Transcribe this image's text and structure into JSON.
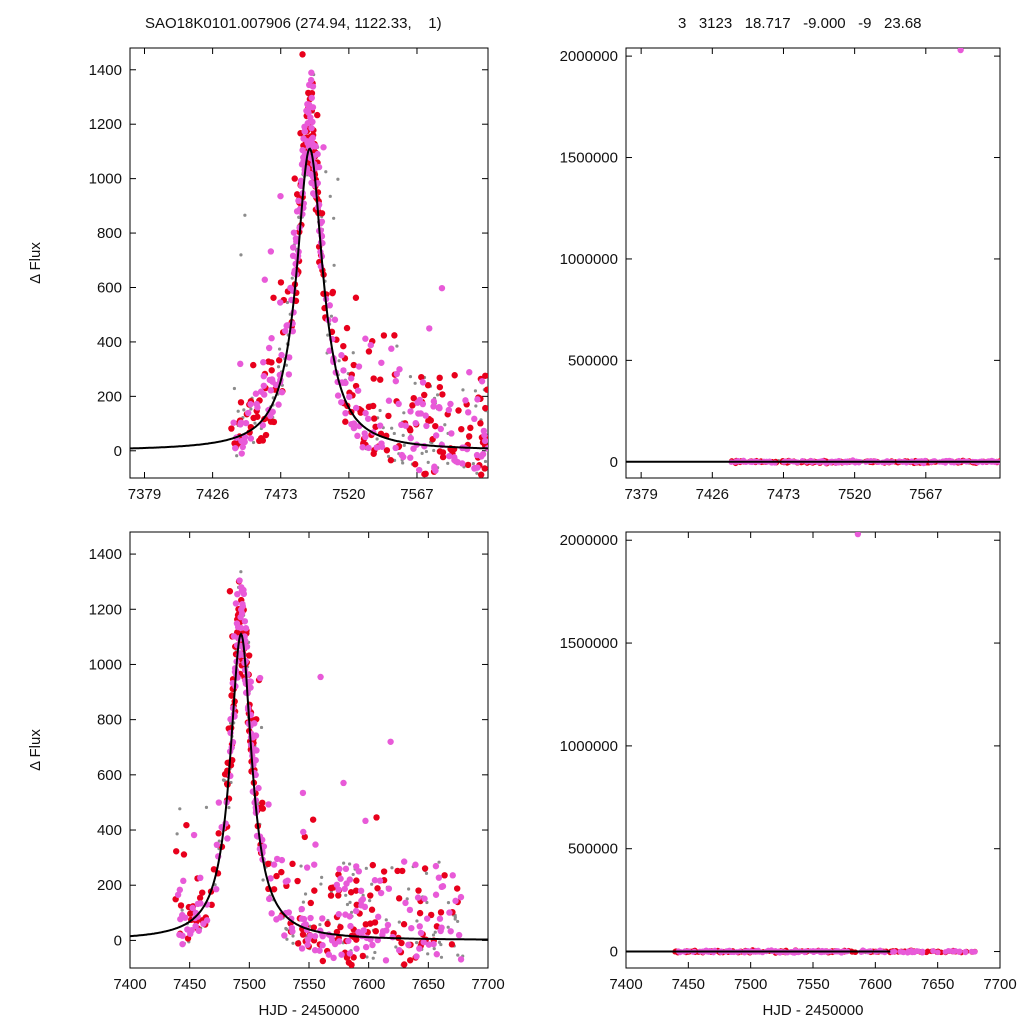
{
  "header": {
    "left": "SAO18K0101.007906 (274.94, 1122.33,    1)",
    "right": "3   3123   18.717   -9.000   -9   23.68"
  },
  "colors": {
    "series_a": "#e8001c",
    "series_b": "#e85ad8",
    "series_c": "#8c8c8c",
    "model": "#000000"
  },
  "chart_data": [
    {
      "type": "scatter",
      "panel": "top-left",
      "xlabel": "",
      "ylabel": "Δ Flux",
      "xlim": [
        7369,
        7616
      ],
      "ylim": [
        -100,
        1480
      ],
      "xticks": [
        "7379",
        "7426",
        "7473",
        "7520",
        "7567"
      ],
      "yticks": [
        "0",
        "200",
        "400",
        "600",
        "800",
        "1000",
        "1200",
        "1400"
      ],
      "model": {
        "peak_x": 7493,
        "peak_y": 1110,
        "width": 11
      },
      "series": [
        {
          "color": "series_c",
          "x_range": [
            7438,
            7616
          ],
          "note": "small gray points"
        },
        {
          "color": "series_a",
          "x_range": [
            7438,
            7616
          ]
        },
        {
          "color": "series_b",
          "x_range": [
            7438,
            7616
          ]
        }
      ]
    },
    {
      "type": "scatter",
      "panel": "top-right",
      "xlabel": "",
      "ylabel": "",
      "xlim": [
        7369,
        7616
      ],
      "ylim": [
        -80000,
        2040000
      ],
      "xticks": [
        "7379",
        "7426",
        "7473",
        "7520",
        "7567"
      ],
      "yticks": [
        "0",
        "500000",
        "1000000",
        "1500000",
        "2000000"
      ],
      "outlier": {
        "x": 7590,
        "y": 2030000
      }
    },
    {
      "type": "scatter",
      "panel": "bottom-left",
      "xlabel": "HJD - 2450000",
      "ylabel": "Δ Flux",
      "xlim": [
        7400,
        7700
      ],
      "ylim": [
        -100,
        1480
      ],
      "xticks": [
        "7400",
        "7450",
        "7500",
        "7550",
        "7600",
        "7650",
        "7700"
      ],
      "yticks": [
        "0",
        "200",
        "400",
        "600",
        "800",
        "1000",
        "1200",
        "1400"
      ],
      "model": {
        "peak_x": 7493,
        "peak_y": 1110,
        "width": 11
      }
    },
    {
      "type": "scatter",
      "panel": "bottom-right",
      "xlabel": "HJD - 2450000",
      "ylabel": "",
      "xlim": [
        7400,
        7700
      ],
      "ylim": [
        -80000,
        2040000
      ],
      "xticks": [
        "7400",
        "7450",
        "7500",
        "7550",
        "7600",
        "7650",
        "7700"
      ],
      "yticks": [
        "0",
        "500000",
        "1000000",
        "1500000",
        "2000000"
      ],
      "outlier": {
        "x": 7586,
        "y": 2030000
      }
    }
  ]
}
